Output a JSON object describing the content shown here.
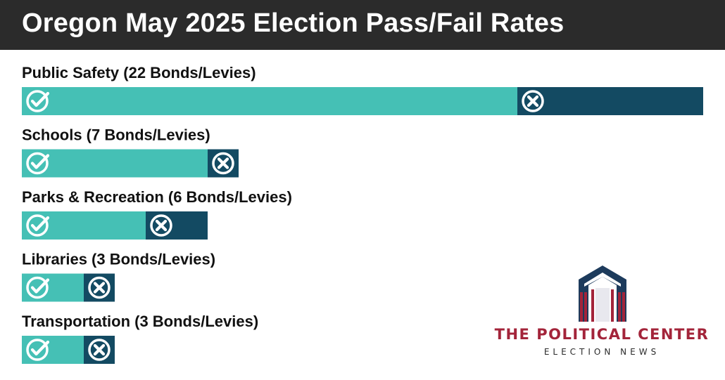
{
  "header": {
    "title": "Oregon May 2025 Election Pass/Fail Rates"
  },
  "colors": {
    "pass": "#45c0b5",
    "fail": "#134a62",
    "header_bg": "#2b2b2b",
    "logo_red": "#a3243a",
    "logo_navy": "#1d3b5c"
  },
  "chart_data": {
    "type": "bar",
    "orientation": "horizontal",
    "stacked": true,
    "title": "Oregon May 2025 Election Pass/Fail Rates",
    "categories": [
      "Public Safety (22 Bonds/Levies)",
      "Schools (7 Bonds/Levies)",
      "Parks & Recreation (6 Bonds/Levies)",
      "Libraries (3 Bonds/Levies)",
      "Transportation (3 Bonds/Levies)"
    ],
    "totals": [
      22,
      7,
      6,
      3,
      3
    ],
    "series": [
      {
        "values": [
          16,
          6,
          4,
          2,
          2
        ],
        "icon": "check-circle-icon"
      },
      {
        "values": [
          6,
          1,
          2,
          1,
          1
        ],
        "icon": "x-circle-icon"
      }
    ],
    "xlim": [
      0,
      22
    ],
    "legend": "none",
    "grid": false
  },
  "logo": {
    "name": "THE POLITICAL CENTER",
    "sub": "ELECTION NEWS"
  }
}
